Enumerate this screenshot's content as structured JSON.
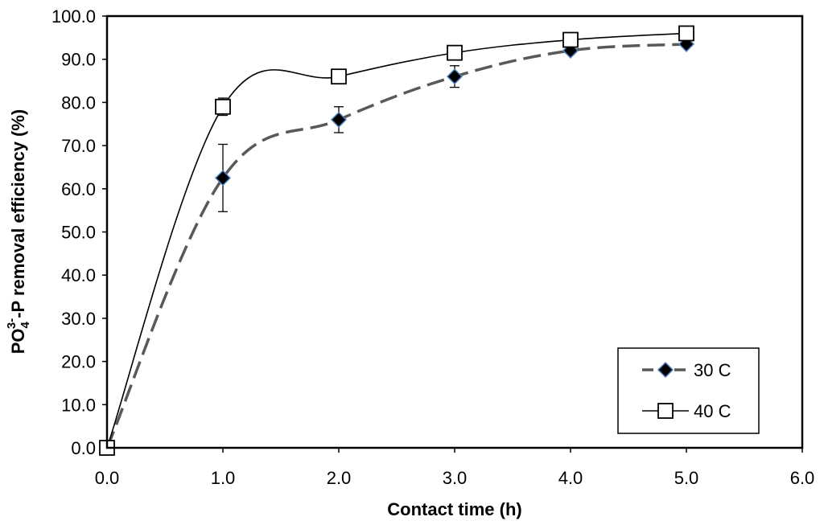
{
  "chart_data": {
    "type": "line",
    "title": "",
    "xlabel": "Contact time (h)",
    "ylabel": {
      "prefix": "PO",
      "sub": "4",
      "sup": "3-",
      "suffix": "-P removal efficiency (%)"
    },
    "xlim": [
      0,
      6
    ],
    "ylim": [
      0,
      100
    ],
    "xticks": [
      "0.0",
      "1.0",
      "2.0",
      "3.0",
      "4.0",
      "5.0",
      "6.0"
    ],
    "yticks": [
      "0.0",
      "10.0",
      "20.0",
      "30.0",
      "40.0",
      "50.0",
      "60.0",
      "70.0",
      "80.0",
      "90.0",
      "100.0"
    ],
    "grid": false,
    "legend_position": "bottom-right",
    "series": [
      {
        "name": "30 C",
        "marker": "filled-diamond",
        "line_style": "dashed",
        "line_color": "#595959",
        "marker_fill": "#000000",
        "marker_edge": "#4f81bd",
        "x": [
          0,
          1,
          2,
          3,
          4,
          5
        ],
        "y": [
          0,
          62.5,
          76,
          86,
          92,
          93.5
        ],
        "error": [
          0,
          7.8,
          3,
          2.5,
          0.5,
          0.5
        ]
      },
      {
        "name": "40 C",
        "marker": "open-square",
        "line_style": "solid",
        "line_color": "#000000",
        "marker_fill": "#ffffff",
        "marker_edge": "#000000",
        "x": [
          0,
          1,
          2,
          3,
          4,
          5
        ],
        "y": [
          0,
          79,
          86,
          91.5,
          94.5,
          96
        ],
        "error": [
          0,
          2,
          1.2,
          0.5,
          0.5,
          0.5
        ]
      }
    ]
  }
}
